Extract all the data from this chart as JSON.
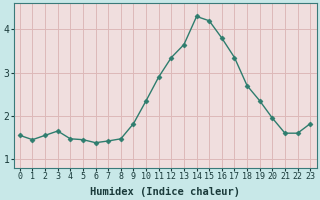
{
  "xlabel": "Humidex (Indice chaleur)",
  "x": [
    0,
    1,
    2,
    3,
    4,
    5,
    6,
    7,
    8,
    9,
    10,
    11,
    12,
    13,
    14,
    15,
    16,
    17,
    18,
    19,
    20,
    21,
    22,
    23
  ],
  "y": [
    1.55,
    1.45,
    1.55,
    1.65,
    1.47,
    1.45,
    1.38,
    1.42,
    1.47,
    1.82,
    2.35,
    2.9,
    3.35,
    3.65,
    4.3,
    4.2,
    3.8,
    3.35,
    2.7,
    2.35,
    1.95,
    1.6,
    1.6,
    1.82
  ],
  "ylim": [
    0.8,
    4.6
  ],
  "yticks": [
    1,
    2,
    3,
    4
  ],
  "line_color": "#2e7d6e",
  "marker": "D",
  "marker_size": 2.5,
  "bg_color": "#c8e8e8",
  "grid_color": "#ddb8b8",
  "plot_bg": "#f0dede",
  "xlabel_fontsize": 7.5,
  "tick_fontsize": 6.0
}
